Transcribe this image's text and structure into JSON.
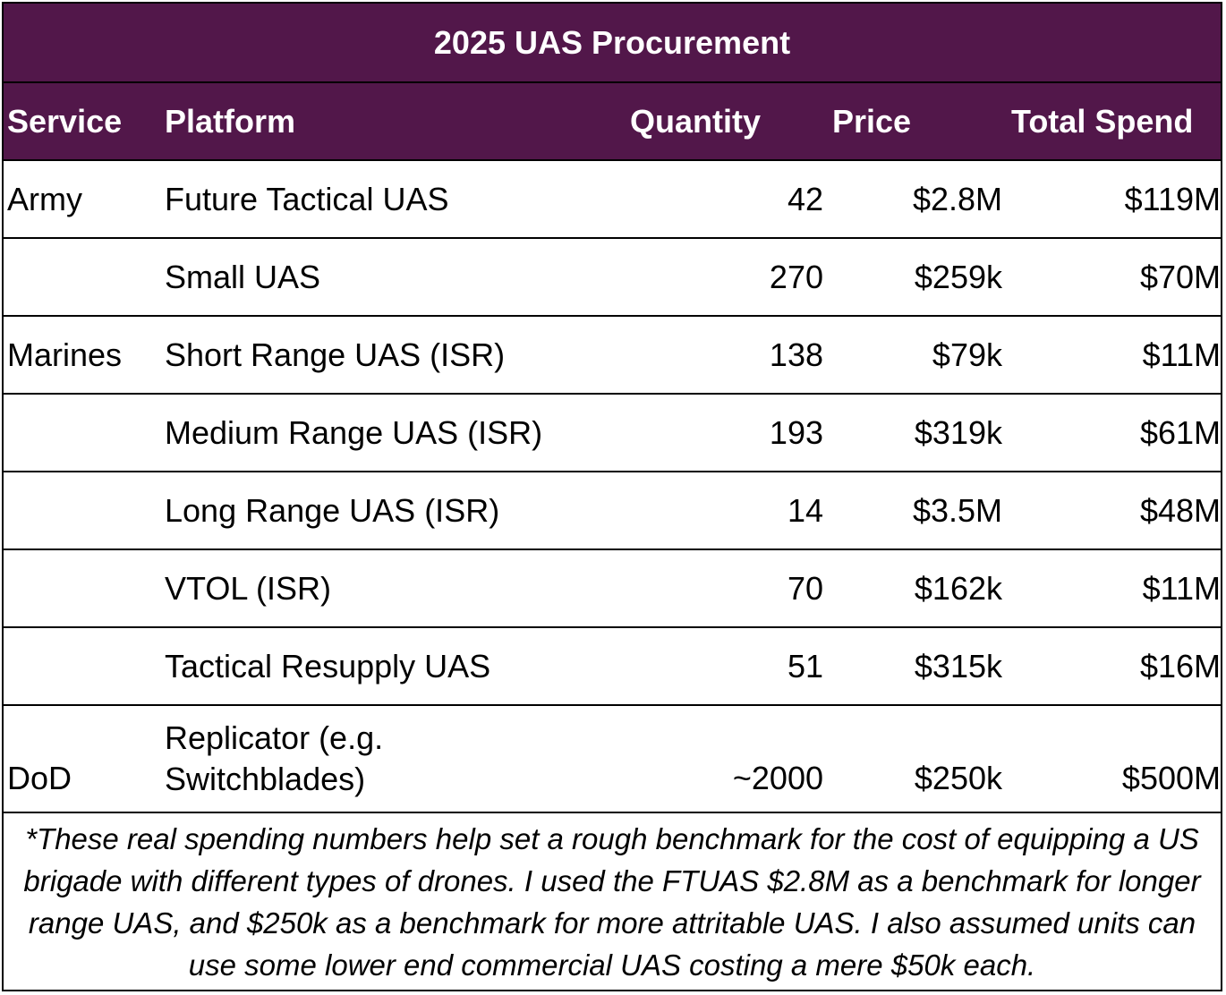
{
  "title": "2025 UAS Procurement",
  "headers": {
    "service": "Service",
    "platform": "Platform",
    "quantity": "Quantity",
    "price": "Price",
    "total": "Total Spend"
  },
  "rows": [
    {
      "service": "Army",
      "platform": "Future Tactical UAS",
      "quantity": "42",
      "price": "$2.8M",
      "total": "$119M"
    },
    {
      "service": "",
      "platform": "Small UAS",
      "quantity": "270",
      "price": "$259k",
      "total": "$70M"
    },
    {
      "service": "Marines",
      "platform": "Short Range UAS (ISR)",
      "quantity": "138",
      "price": "$79k",
      "total": "$11M"
    },
    {
      "service": "",
      "platform": "Medium Range UAS (ISR)",
      "quantity": "193",
      "price": "$319k",
      "total": "$61M"
    },
    {
      "service": "",
      "platform": "Long Range UAS (ISR)",
      "quantity": "14",
      "price": "$3.5M",
      "total": "$48M"
    },
    {
      "service": "",
      "platform": "VTOL (ISR)",
      "quantity": "70",
      "price": "$162k",
      "total": "$11M"
    },
    {
      "service": "",
      "platform": "Tactical Resupply UAS",
      "quantity": "51",
      "price": "$315k",
      "total": "$16M"
    },
    {
      "service": "DoD",
      "platform_line1": "Replicator (e.g.",
      "platform_line2": "Switchblades)",
      "quantity": "~2000",
      "price": "$250k",
      "total": "$500M"
    }
  ],
  "footnote": "*These real spending numbers help set a rough benchmark for the cost of equipping a US brigade with different types of drones. I used the FTUAS $2.8M as a benchmark for longer range UAS, and $250k as a benchmark for more attritable UAS. I also assumed units can use some lower end commercial UAS costing a mere $50k each."
}
